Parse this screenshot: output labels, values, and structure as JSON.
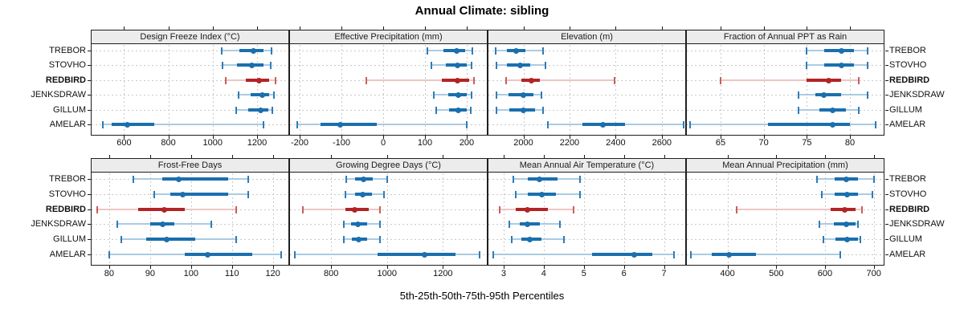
{
  "title": "Annual Climate: sibling",
  "axis_label": "5th-25th-50th-75th-95th Percentiles",
  "colors": {
    "blue": {
      "dark": "#1a6fae",
      "mid": "#2e7cb8",
      "light": "#aacbe3"
    },
    "red": {
      "dark": "#b22426",
      "mid": "#c9605c",
      "light": "#edc6c4"
    },
    "strip_bg": "#ececec",
    "grid": "#c9c9c9",
    "frame": "#1f1f1f"
  },
  "chart_data": {
    "type": "dotplot",
    "legend_position": "none",
    "grid": "on",
    "percentiles": [
      "5th",
      "25th",
      "50th",
      "75th",
      "95th"
    ],
    "categories": [
      "TREBOR",
      "STOVHO",
      "REDBIRD",
      "JENKSDRAW",
      "GILLUM",
      "AMELAR"
    ],
    "highlight": "REDBIRD",
    "panels": [
      {
        "title": "Design Freeze Index (°C)",
        "row": 0,
        "col": 0,
        "xlim": [
          450,
          1345
        ],
        "ticks": [
          600,
          800,
          1000,
          1200
        ],
        "series": [
          {
            "name": "TREBOR",
            "values": [
              1040,
              1120,
              1185,
              1230,
              1265
            ]
          },
          {
            "name": "STOVHO",
            "values": [
              1045,
              1110,
              1175,
              1230,
              1260
            ]
          },
          {
            "name": "REDBIRD",
            "values": [
              1060,
              1150,
              1210,
              1255,
              1285
            ]
          },
          {
            "name": "JENKSDRAW",
            "values": [
              1115,
              1170,
              1225,
              1255,
              1275
            ]
          },
          {
            "name": "GILLUM",
            "values": [
              1105,
              1160,
              1215,
              1250,
              1270
            ]
          },
          {
            "name": "AMELAR",
            "values": [
              505,
              545,
              615,
              735,
              1230
            ]
          }
        ]
      },
      {
        "title": "Effective Precipitation (mm)",
        "row": 0,
        "col": 1,
        "xlim": [
          -225,
          250
        ],
        "ticks": [
          -200,
          -100,
          0,
          100,
          200
        ],
        "series": [
          {
            "name": "TREBOR",
            "values": [
              105,
              145,
              175,
              197,
              213
            ]
          },
          {
            "name": "STOVHO",
            "values": [
              115,
              150,
              178,
              200,
              212
            ]
          },
          {
            "name": "REDBIRD",
            "values": [
              -40,
              140,
              178,
              205,
              218
            ]
          },
          {
            "name": "JENKSDRAW",
            "values": [
              122,
              155,
              180,
              200,
              212
            ]
          },
          {
            "name": "GILLUM",
            "values": [
              127,
              157,
              180,
              200,
              210
            ]
          },
          {
            "name": "AMELAR",
            "values": [
              -205,
              -150,
              -103,
              -15,
              200
            ]
          }
        ]
      },
      {
        "title": "Elevation (m)",
        "row": 0,
        "col": 2,
        "xlim": [
          1845,
          2705
        ],
        "ticks": [
          2000,
          2200,
          2400,
          2600
        ],
        "series": [
          {
            "name": "TREBOR",
            "values": [
              1880,
              1930,
              1970,
              2010,
              2085
            ]
          },
          {
            "name": "STOVHO",
            "values": [
              1885,
              1930,
              1985,
              2030,
              2095
            ]
          },
          {
            "name": "REDBIRD",
            "values": [
              1925,
              1990,
              2035,
              2070,
              2395
            ]
          },
          {
            "name": "JENKSDRAW",
            "values": [
              1885,
              1935,
              2000,
              2045,
              2080
            ]
          },
          {
            "name": "GILLUM",
            "values": [
              1885,
              1940,
              2000,
              2050,
              2085
            ]
          },
          {
            "name": "AMELAR",
            "values": [
              2105,
              2255,
              2345,
              2440,
              2695
            ]
          }
        ]
      },
      {
        "title": "Fraction of Annual PPT as Rain",
        "row": 0,
        "col": 3,
        "xlim": [
          61,
          84
        ],
        "ticks": [
          65,
          70,
          75,
          80
        ],
        "series": [
          {
            "name": "TREBOR",
            "values": [
              75,
              77,
              79,
              80.5,
              82
            ]
          },
          {
            "name": "STOVHO",
            "values": [
              75,
              77,
              79,
              80.5,
              82
            ]
          },
          {
            "name": "REDBIRD",
            "values": [
              65,
              75,
              77.5,
              79,
              81
            ]
          },
          {
            "name": "JENKSDRAW",
            "values": [
              74,
              76,
              77,
              79,
              82
            ]
          },
          {
            "name": "GILLUM",
            "values": [
              74,
              76.5,
              78,
              79.5,
              81
            ]
          },
          {
            "name": "AMELAR",
            "values": [
              61.5,
              70.5,
              78,
              80,
              83
            ]
          }
        ]
      },
      {
        "title": "Frost-Free Days",
        "row": 1,
        "col": 0,
        "xlim": [
          75.5,
          124
        ],
        "ticks": [
          80,
          90,
          100,
          110,
          120
        ],
        "series": [
          {
            "name": "TREBOR",
            "values": [
              86,
              93,
              97,
              109,
              114
            ]
          },
          {
            "name": "STOVHO",
            "values": [
              91,
              95,
              98,
              109,
              114
            ]
          },
          {
            "name": "REDBIRD",
            "values": [
              77,
              87,
              93.5,
              98.5,
              111
            ]
          },
          {
            "name": "JENKSDRAW",
            "values": [
              82,
              90,
              93,
              96,
              105
            ]
          },
          {
            "name": "GILLUM",
            "values": [
              83,
              89,
              94,
              101,
              111
            ]
          },
          {
            "name": "AMELAR",
            "values": [
              80,
              98.5,
              104,
              115,
              122
            ]
          }
        ]
      },
      {
        "title": "Growing Degree Days (°C)",
        "row": 1,
        "col": 1,
        "xlim": [
          650,
          1360
        ],
        "ticks": [
          800,
          1000,
          1200
        ],
        "series": [
          {
            "name": "TREBOR",
            "values": [
              855,
              885,
              915,
              950,
              1000
            ]
          },
          {
            "name": "STOVHO",
            "values": [
              850,
              885,
              912,
              945,
              990
            ]
          },
          {
            "name": "REDBIRD",
            "values": [
              700,
              850,
              885,
              935,
              975
            ]
          },
          {
            "name": "JENKSDRAW",
            "values": [
              845,
              870,
              895,
              930,
              975
            ]
          },
          {
            "name": "GILLUM",
            "values": [
              845,
              875,
              900,
              930,
              975
            ]
          },
          {
            "name": "AMELAR",
            "values": [
              670,
              965,
              1135,
              1245,
              1330
            ]
          }
        ]
      },
      {
        "title": "Mean Annual Air Temperature (°C)",
        "row": 1,
        "col": 2,
        "xlim": [
          2.6,
          7.55
        ],
        "ticks": [
          3,
          4,
          5,
          6,
          7
        ],
        "series": [
          {
            "name": "TREBOR",
            "values": [
              3.25,
              3.6,
              3.9,
              4.35,
              4.9
            ]
          },
          {
            "name": "STOVHO",
            "values": [
              3.3,
              3.6,
              3.95,
              4.3,
              4.9
            ]
          },
          {
            "name": "REDBIRD",
            "values": [
              2.9,
              3.3,
              3.6,
              4.1,
              4.75
            ]
          },
          {
            "name": "JENKSDRAW",
            "values": [
              3.15,
              3.4,
              3.6,
              3.9,
              4.4
            ]
          },
          {
            "name": "GILLUM",
            "values": [
              3.2,
              3.45,
              3.65,
              3.95,
              4.5
            ]
          },
          {
            "name": "AMELAR",
            "values": [
              2.75,
              5.2,
              6.25,
              6.7,
              7.25
            ]
          }
        ]
      },
      {
        "title": "Mean Annual Precipitation (mm)",
        "row": 1,
        "col": 3,
        "xlim": [
          315,
          722
        ],
        "ticks": [
          400,
          500,
          600,
          700
        ],
        "series": [
          {
            "name": "TREBOR",
            "values": [
              583,
              620,
              643,
              668,
              700
            ]
          },
          {
            "name": "STOVHO",
            "values": [
              593,
              620,
              645,
              668,
              697
            ]
          },
          {
            "name": "REDBIRD",
            "values": [
              418,
              612,
              640,
              662,
              676
            ]
          },
          {
            "name": "JENKSDRAW",
            "values": [
              588,
              618,
              643,
              662,
              668
            ]
          },
          {
            "name": "GILLUM",
            "values": [
              597,
              622,
              646,
              668,
              672
            ]
          },
          {
            "name": "AMELAR",
            "values": [
              325,
              368,
              403,
              458,
              632
            ]
          }
        ]
      }
    ]
  }
}
